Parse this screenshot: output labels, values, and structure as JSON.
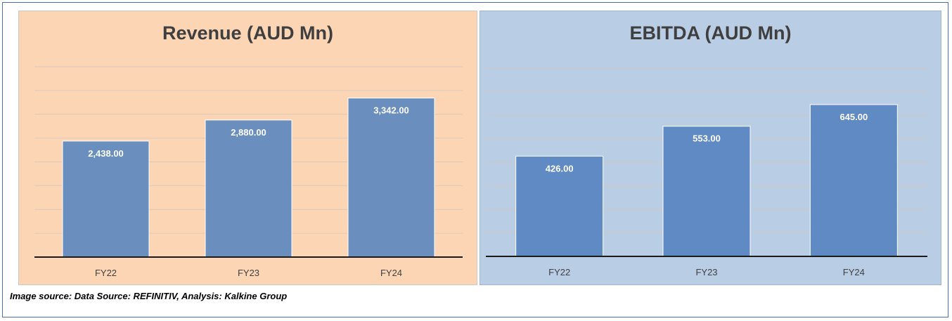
{
  "footer": {
    "source_text": "Image source: Data Source: REFINITIV, Analysis: Kalkine Group"
  },
  "colors": {
    "revenue_panel_bg": "#fcd5b5",
    "ebitda_panel_bg": "#b9cde5",
    "revenue_bar": "#6a8fbf",
    "ebitda_bar": "#5f8ac4",
    "title_text": "#3f3f3f"
  },
  "chart_data": [
    {
      "type": "bar",
      "title": "Revenue (AUD Mn)",
      "categories": [
        "FY22",
        "FY23",
        "FY24"
      ],
      "values": [
        2438.0,
        2880.0,
        3342.0
      ],
      "value_labels": [
        "2,438.00",
        "2,880.00",
        "3,342.00"
      ],
      "xlabel": "",
      "ylabel": "",
      "ylim": [
        0,
        4000
      ],
      "grid": true
    },
    {
      "type": "bar",
      "title": "EBITDA (AUD Mn)",
      "categories": [
        "FY22",
        "FY23",
        "FY24"
      ],
      "values": [
        426.0,
        553.0,
        645.0
      ],
      "value_labels": [
        "426.00",
        "553.00",
        "645.00"
      ],
      "xlabel": "",
      "ylabel": "",
      "ylim": [
        0,
        800
      ],
      "grid": true
    }
  ]
}
